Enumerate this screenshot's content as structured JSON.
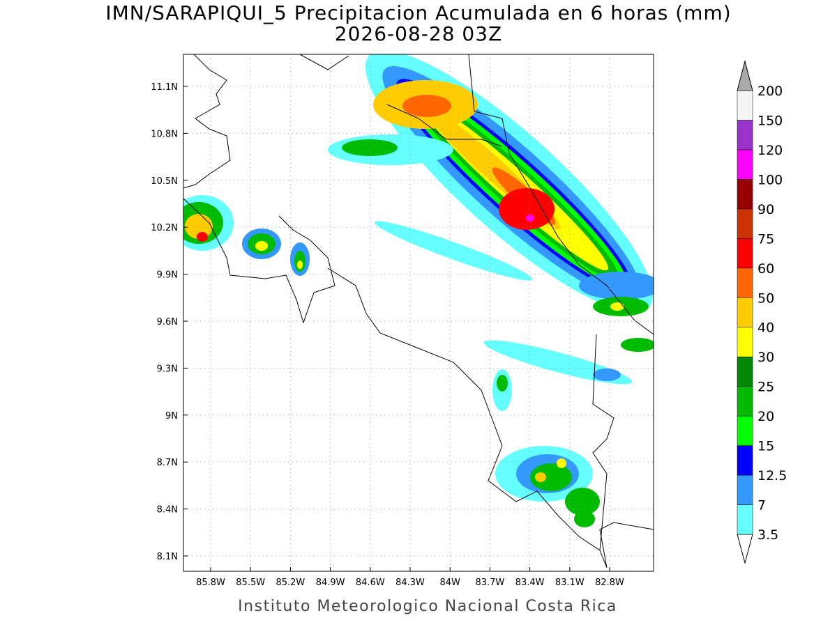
{
  "title": "IMN/SARAPIQUI_5 Precipitacion Acumulada en 6 horas (mm)",
  "subtitle": "2026-08-28 03Z",
  "lat_labels": [
    "11.1N",
    "10.8N",
    "10.5N",
    "10.2N",
    "9.9N",
    "9.6N",
    "9.3N",
    "9N",
    "8.7N",
    "8.4N",
    "8.1N"
  ],
  "lon_labels": [
    "85.8W",
    "85.5W",
    "85.2W",
    "84.9W",
    "84.6W",
    "84.3W",
    "84W",
    "83.7W",
    "83.4W",
    "83.1W",
    "82.8W"
  ],
  "colorbar": {
    "labels": [
      "3.5",
      "7",
      "12.5",
      "15",
      "20",
      "25",
      "30",
      "40",
      "50",
      "60",
      "75",
      "90",
      "100",
      "120",
      "150",
      "200"
    ],
    "colors": [
      "#66ffff",
      "#3399ff",
      "#0000ff",
      "#00ff00",
      "#00bb00",
      "#008800",
      "#ffff00",
      "#ffcc00",
      "#ff6600",
      "#ff0000",
      "#cc3300",
      "#990000",
      "#ff00ff",
      "#9933cc",
      "#f5f5f5"
    ]
  },
  "footer": "Instituto Meteorologico Nacional Costa Rica"
}
